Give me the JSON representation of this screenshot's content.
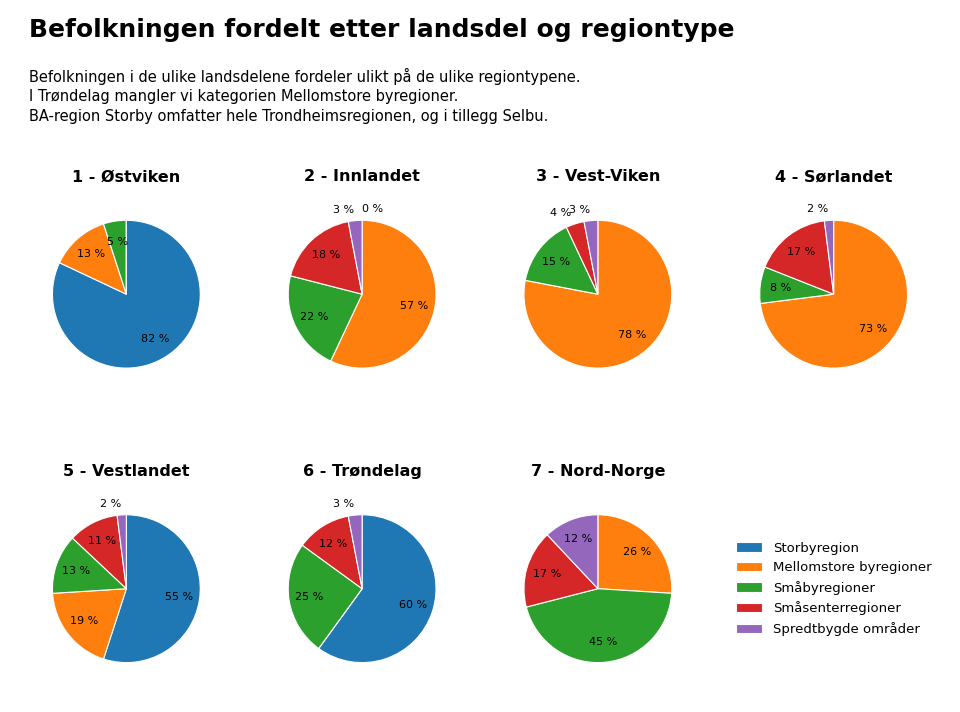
{
  "title": "Befolkningen fordelt etter landsdel og regiontype",
  "subtitle": "Befolkningen i de ulike landsdelene fordeler ulikt på de ulike regiontypene.\nI Trøndelag mangler vi kategorien Mellomstore byregioner.\nBA-region Storby omfatter hele Trondheimsregionen, og i tillegg Selbu.",
  "legend": "center",
  "chart_data": [
    {
      "type": "pie",
      "title": "1 - Østviken",
      "categories": [
        "Storbyregion",
        "Mellomstore byregioner",
        "Småbyregioner",
        "Småsenterregioner",
        "Spredtbygde områder"
      ],
      "values": [
        82,
        13,
        5,
        0,
        0
      ],
      "value_labels": [
        "82 %",
        "13 %",
        "5 %",
        null,
        null
      ],
      "data_labels": true
    },
    {
      "type": "pie",
      "title": "2 - Innlandet",
      "categories": [
        "Storbyregion",
        "Mellomstore byregioner",
        "Småbyregioner",
        "Småsenterregioner",
        "Spredtbygde områder"
      ],
      "values": [
        0,
        57,
        22,
        18,
        3
      ],
      "value_labels": [
        "0 %",
        "57 %",
        "22 %",
        "18 %",
        "3 %"
      ],
      "data_labels": true
    },
    {
      "type": "pie",
      "title": "3 - Vest-Viken",
      "categories": [
        "Storbyregion",
        "Mellomstore byregioner",
        "Småbyregioner",
        "Småsenterregioner",
        "Spredtbygde områder"
      ],
      "values": [
        0,
        78,
        15,
        4,
        3
      ],
      "value_labels": [
        null,
        "78 %",
        "15 %",
        "4 %",
        "3 %"
      ],
      "data_labels": true
    },
    {
      "type": "pie",
      "title": "4 - Sørlandet",
      "categories": [
        "Storbyregion",
        "Mellomstore byregioner",
        "Småbyregioner",
        "Småsenterregioner",
        "Spredtbygde områder"
      ],
      "values": [
        0,
        73,
        8,
        17,
        2
      ],
      "value_labels": [
        null,
        "73 %",
        "8 %",
        "17 %",
        "2 %"
      ],
      "data_labels": true
    },
    {
      "type": "pie",
      "title": "5 - Vestlandet",
      "categories": [
        "Storbyregion",
        "Mellomstore byregioner",
        "Småbyregioner",
        "Småsenterregioner",
        "Spredtbygde områder"
      ],
      "values": [
        55,
        19,
        13,
        11,
        2
      ],
      "value_labels": [
        "55 %",
        "19 %",
        "13 %",
        "11 %",
        "2 %"
      ],
      "data_labels": true
    },
    {
      "type": "pie",
      "title": "6 - Trøndelag",
      "categories": [
        "Storbyregion",
        "Mellomstore byregioner",
        "Småbyregioner",
        "Småsenterregioner",
        "Spredtbygde områder"
      ],
      "values": [
        60,
        0,
        25,
        12,
        3
      ],
      "value_labels": [
        "60 %",
        null,
        "25 %",
        "12 %",
        "3 %"
      ],
      "data_labels": true
    },
    {
      "type": "pie",
      "title": "7 - Nord-Norge",
      "categories": [
        "Storbyregion",
        "Mellomstore byregioner",
        "Småbyregioner",
        "Småsenterregioner",
        "Spredtbygde områder"
      ],
      "values": [
        0,
        26,
        45,
        17,
        12
      ],
      "value_labels": [
        null,
        "26 %",
        "45 %",
        "17 %",
        "12 %"
      ],
      "data_labels": true
    }
  ]
}
